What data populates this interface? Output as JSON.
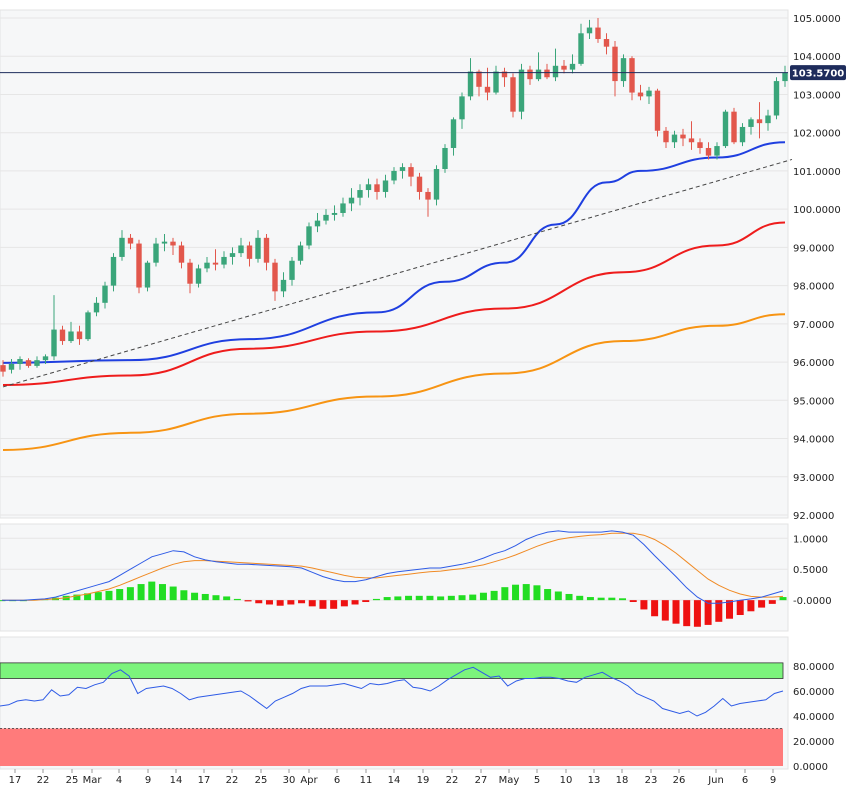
{
  "chart_data": [
    {
      "type": "candlestick",
      "panel": "price",
      "y_ticks": [
        "105.0000",
        "104.0000",
        "103.0000",
        "102.0000",
        "101.0000",
        "100.0000",
        "99.0000",
        "98.0000",
        "97.0000",
        "96.0000",
        "95.0000",
        "94.0000",
        "93.0000",
        "92.0000"
      ],
      "ylim": [
        91.8,
        105.3
      ],
      "last_price_label": "103.5700",
      "last_price": 103.57,
      "candles": [
        [
          95.92,
          95.75,
          96.05,
          95.62
        ],
        [
          95.8,
          95.95,
          96.08,
          95.7
        ],
        [
          95.95,
          96.08,
          96.15,
          95.8
        ],
        [
          96.05,
          95.9,
          96.1,
          95.85
        ],
        [
          95.9,
          96.05,
          96.15,
          95.85
        ],
        [
          96.05,
          96.15,
          96.2,
          95.95
        ],
        [
          96.15,
          96.85,
          97.75,
          96.05
        ],
        [
          96.85,
          96.55,
          96.95,
          96.45
        ],
        [
          96.55,
          96.8,
          97.05,
          96.5
        ],
        [
          96.8,
          96.6,
          96.95,
          96.45
        ],
        [
          96.6,
          97.3,
          97.35,
          96.55
        ],
        [
          97.3,
          97.55,
          97.7,
          97.2
        ],
        [
          97.55,
          98.0,
          98.1,
          97.4
        ],
        [
          98.0,
          98.75,
          98.85,
          97.85
        ],
        [
          98.75,
          99.25,
          99.45,
          98.65
        ],
        [
          99.25,
          99.1,
          99.35,
          98.95
        ],
        [
          99.1,
          97.95,
          99.2,
          97.8
        ],
        [
          97.95,
          98.6,
          98.65,
          97.85
        ],
        [
          98.6,
          99.1,
          99.25,
          98.5
        ],
        [
          99.1,
          99.15,
          99.35,
          98.9
        ],
        [
          99.15,
          99.05,
          99.25,
          98.8
        ],
        [
          99.05,
          98.6,
          99.15,
          98.45
        ],
        [
          98.6,
          98.05,
          98.7,
          97.8
        ],
        [
          98.05,
          98.45,
          98.55,
          97.95
        ],
        [
          98.45,
          98.6,
          98.75,
          98.35
        ],
        [
          98.6,
          98.55,
          98.95,
          98.4
        ],
        [
          98.55,
          98.75,
          98.9,
          98.45
        ],
        [
          98.75,
          98.85,
          99.0,
          98.55
        ],
        [
          98.85,
          99.05,
          99.25,
          98.75
        ],
        [
          99.05,
          98.7,
          99.15,
          98.5
        ],
        [
          98.7,
          99.25,
          99.45,
          98.6
        ],
        [
          99.25,
          98.6,
          99.35,
          98.4
        ],
        [
          98.6,
          97.85,
          98.7,
          97.6
        ],
        [
          97.85,
          98.15,
          98.35,
          97.7
        ],
        [
          98.15,
          98.65,
          98.75,
          98.0
        ],
        [
          98.65,
          99.05,
          99.15,
          98.55
        ],
        [
          99.05,
          99.55,
          99.65,
          98.95
        ],
        [
          99.55,
          99.7,
          99.9,
          99.4
        ],
        [
          99.7,
          99.85,
          100.0,
          99.6
        ],
        [
          99.85,
          99.9,
          100.1,
          99.7
        ],
        [
          99.9,
          100.15,
          100.3,
          99.8
        ],
        [
          100.15,
          100.3,
          100.55,
          99.95
        ],
        [
          100.3,
          100.5,
          100.65,
          100.1
        ],
        [
          100.5,
          100.65,
          100.8,
          100.3
        ],
        [
          100.65,
          100.45,
          100.8,
          100.25
        ],
        [
          100.45,
          100.75,
          100.9,
          100.3
        ],
        [
          100.75,
          101.0,
          101.1,
          100.65
        ],
        [
          101.0,
          101.1,
          101.2,
          100.8
        ],
        [
          101.1,
          100.85,
          101.2,
          100.6
        ],
        [
          100.85,
          100.45,
          100.95,
          100.25
        ],
        [
          100.45,
          100.25,
          100.55,
          99.8
        ],
        [
          100.25,
          101.05,
          101.15,
          100.1
        ],
        [
          101.05,
          101.6,
          101.7,
          100.95
        ],
        [
          101.6,
          102.35,
          102.4,
          101.4
        ],
        [
          102.35,
          102.95,
          103.05,
          102.1
        ],
        [
          102.95,
          103.6,
          103.95,
          102.85
        ],
        [
          103.6,
          103.2,
          103.65,
          102.95
        ],
        [
          103.2,
          103.05,
          103.7,
          102.85
        ],
        [
          103.05,
          103.6,
          103.75,
          103.0
        ],
        [
          103.6,
          103.45,
          103.7,
          103.2
        ],
        [
          103.45,
          102.55,
          103.55,
          102.4
        ],
        [
          102.55,
          103.65,
          103.8,
          102.35
        ],
        [
          103.65,
          103.4,
          103.75,
          103.25
        ],
        [
          103.4,
          103.65,
          104.1,
          103.35
        ],
        [
          103.65,
          103.45,
          103.8,
          103.4
        ],
        [
          103.45,
          103.75,
          104.2,
          103.35
        ],
        [
          103.75,
          103.65,
          103.9,
          103.55
        ],
        [
          103.65,
          103.8,
          104.05,
          103.55
        ],
        [
          103.8,
          104.6,
          104.85,
          103.75
        ],
        [
          104.6,
          104.75,
          104.95,
          104.45
        ],
        [
          104.75,
          104.45,
          105.0,
          104.35
        ],
        [
          104.45,
          104.25,
          104.6,
          104.05
        ],
        [
          104.25,
          103.35,
          104.4,
          102.95
        ],
        [
          103.35,
          103.95,
          104.05,
          103.2
        ],
        [
          103.95,
          103.05,
          104.0,
          102.85
        ],
        [
          103.05,
          102.95,
          103.25,
          102.85
        ],
        [
          102.95,
          103.1,
          103.2,
          102.75
        ],
        [
          103.1,
          102.05,
          103.15,
          101.9
        ],
        [
          102.05,
          101.75,
          102.15,
          101.6
        ],
        [
          101.75,
          101.95,
          102.05,
          101.6
        ],
        [
          101.95,
          101.85,
          102.1,
          101.65
        ],
        [
          101.85,
          101.75,
          102.3,
          101.55
        ],
        [
          101.75,
          101.6,
          101.85,
          101.45
        ],
        [
          101.6,
          101.4,
          101.75,
          101.3
        ],
        [
          101.4,
          101.65,
          101.75,
          101.3
        ],
        [
          101.65,
          102.55,
          102.6,
          101.6
        ],
        [
          102.55,
          101.75,
          102.65,
          101.7
        ],
        [
          101.75,
          102.15,
          102.25,
          101.65
        ],
        [
          102.15,
          102.35,
          102.4,
          101.95
        ],
        [
          102.35,
          102.25,
          102.8,
          101.85
        ],
        [
          102.25,
          102.45,
          102.6,
          102.05
        ],
        [
          102.45,
          103.35,
          103.45,
          102.35
        ],
        [
          103.35,
          103.57,
          103.75,
          103.2
        ]
      ],
      "moving_averages": [
        {
          "color": "#1f3fe0",
          "start": 96.0,
          "end": 101.75,
          "points": [
            [
              0,
              95.98
            ],
            [
              14,
              96.05
            ],
            [
              28,
              96.6
            ],
            [
              42,
              97.3
            ],
            [
              50,
              98.1
            ],
            [
              56,
              98.6
            ],
            [
              62,
              99.6
            ],
            [
              68,
              100.7
            ],
            [
              72,
              101.0
            ],
            [
              80,
              101.35
            ],
            [
              88,
              101.75
            ]
          ]
        },
        {
          "color": "#ee1c1c",
          "start": 95.4,
          "end": 99.65,
          "points": [
            [
              0,
              95.4
            ],
            [
              14,
              95.65
            ],
            [
              28,
              96.35
            ],
            [
              42,
              96.8
            ],
            [
              56,
              97.4
            ],
            [
              70,
              98.35
            ],
            [
              80,
              99.05
            ],
            [
              88,
              99.65
            ]
          ]
        },
        {
          "color": "#f79413",
          "start": 93.7,
          "end": 97.25,
          "points": [
            [
              0,
              93.7
            ],
            [
              14,
              94.15
            ],
            [
              28,
              94.65
            ],
            [
              42,
              95.1
            ],
            [
              56,
              95.7
            ],
            [
              70,
              96.55
            ],
            [
              80,
              96.95
            ],
            [
              88,
              97.25
            ]
          ]
        }
      ],
      "trendline": {
        "color": "#444444",
        "from": [
          0,
          95.35
        ],
        "to": [
          88,
          101.3
        ]
      }
    },
    {
      "type": "macd",
      "panel": "macd",
      "y_ticks": [
        "1.0000",
        "0.5000",
        "-0.0000"
      ],
      "ylim": [
        -0.45,
        1.15
      ],
      "macd": [
        0,
        0,
        0,
        0.01,
        0.02,
        0.05,
        0.1,
        0.15,
        0.2,
        0.25,
        0.3,
        0.4,
        0.5,
        0.6,
        0.7,
        0.75,
        0.8,
        0.78,
        0.7,
        0.65,
        0.62,
        0.6,
        0.58,
        0.58,
        0.57,
        0.56,
        0.55,
        0.54,
        0.52,
        0.45,
        0.38,
        0.33,
        0.3,
        0.3,
        0.33,
        0.38,
        0.43,
        0.46,
        0.48,
        0.5,
        0.52,
        0.52,
        0.55,
        0.58,
        0.62,
        0.68,
        0.75,
        0.8,
        0.88,
        0.98,
        1.05,
        1.1,
        1.12,
        1.1,
        1.1,
        1.1,
        1.1,
        1.12,
        1.1,
        1.05,
        0.9,
        0.72,
        0.55,
        0.38,
        0.2,
        0.05,
        -0.05,
        -0.05,
        -0.03,
        0,
        0.02,
        0.05,
        0.1,
        0.15
      ],
      "signal": [
        0,
        0,
        0,
        0,
        0.01,
        0.02,
        0.04,
        0.07,
        0.1,
        0.14,
        0.18,
        0.24,
        0.31,
        0.38,
        0.45,
        0.52,
        0.58,
        0.62,
        0.64,
        0.64,
        0.63,
        0.62,
        0.61,
        0.6,
        0.59,
        0.58,
        0.57,
        0.56,
        0.55,
        0.52,
        0.48,
        0.44,
        0.4,
        0.37,
        0.36,
        0.36,
        0.38,
        0.4,
        0.42,
        0.44,
        0.46,
        0.47,
        0.49,
        0.51,
        0.54,
        0.57,
        0.62,
        0.67,
        0.73,
        0.8,
        0.87,
        0.93,
        0.98,
        1.01,
        1.03,
        1.05,
        1.06,
        1.08,
        1.08,
        1.08,
        1.05,
        0.98,
        0.88,
        0.76,
        0.62,
        0.48,
        0.34,
        0.24,
        0.16,
        0.1,
        0.06,
        0.05,
        0.05,
        0.06
      ],
      "histogram": [
        0,
        0,
        0,
        0.01,
        0.02,
        0.04,
        0.07,
        0.09,
        0.11,
        0.13,
        0.15,
        0.18,
        0.21,
        0.26,
        0.3,
        0.26,
        0.22,
        0.16,
        0.12,
        0.1,
        0.08,
        0.06,
        0.02,
        -0.02,
        -0.05,
        -0.07,
        -0.09,
        -0.07,
        -0.05,
        -0.1,
        -0.14,
        -0.14,
        -0.1,
        -0.07,
        -0.03,
        0.02,
        0.05,
        0.06,
        0.07,
        0.07,
        0.07,
        0.06,
        0.07,
        0.08,
        0.09,
        0.12,
        0.15,
        0.21,
        0.25,
        0.26,
        0.24,
        0.18,
        0.14,
        0.1,
        0.07,
        0.05,
        0.04,
        0.04,
        0.03,
        -0.03,
        -0.15,
        -0.26,
        -0.33,
        -0.38,
        -0.42,
        -0.43,
        -0.4,
        -0.35,
        -0.3,
        -0.24,
        -0.18,
        -0.12,
        -0.06,
        0.05
      ]
    },
    {
      "type": "rsi",
      "panel": "rsi",
      "y_ticks": [
        "80.0000",
        "60.0000",
        "40.0000",
        "20.0000",
        "0.0000"
      ],
      "ylim": [
        0,
        100
      ],
      "overbought": 70,
      "oversold": 30,
      "values": [
        48,
        49,
        52,
        53,
        52,
        53,
        61,
        56,
        57,
        63,
        62,
        65,
        67,
        74,
        77,
        72,
        58,
        62,
        63,
        64,
        62,
        58,
        53,
        55,
        56,
        57,
        58,
        59,
        60,
        56,
        51,
        46,
        52,
        55,
        58,
        62,
        64,
        64,
        64,
        65,
        66,
        64,
        62,
        66,
        65,
        66,
        68,
        69,
        63,
        62,
        60,
        64,
        69,
        73,
        77,
        79,
        75,
        71,
        72,
        64,
        68,
        70,
        70,
        71,
        71,
        70,
        68,
        67,
        71,
        73,
        75,
        71,
        68,
        64,
        58,
        55,
        52,
        46,
        44,
        42,
        44,
        40,
        43,
        48,
        54,
        48,
        50,
        51,
        52,
        53,
        58,
        60
      ],
      "x_tick_labels": [
        "17",
        "22",
        "25",
        "Mar",
        "4",
        "9",
        "14",
        "17",
        "22",
        "25",
        "30",
        "Apr",
        "6",
        "11",
        "14",
        "19",
        "22",
        "27",
        "May",
        "5",
        "10",
        "13",
        "18",
        "23",
        "26",
        "Jun",
        "6",
        "9"
      ]
    }
  ]
}
